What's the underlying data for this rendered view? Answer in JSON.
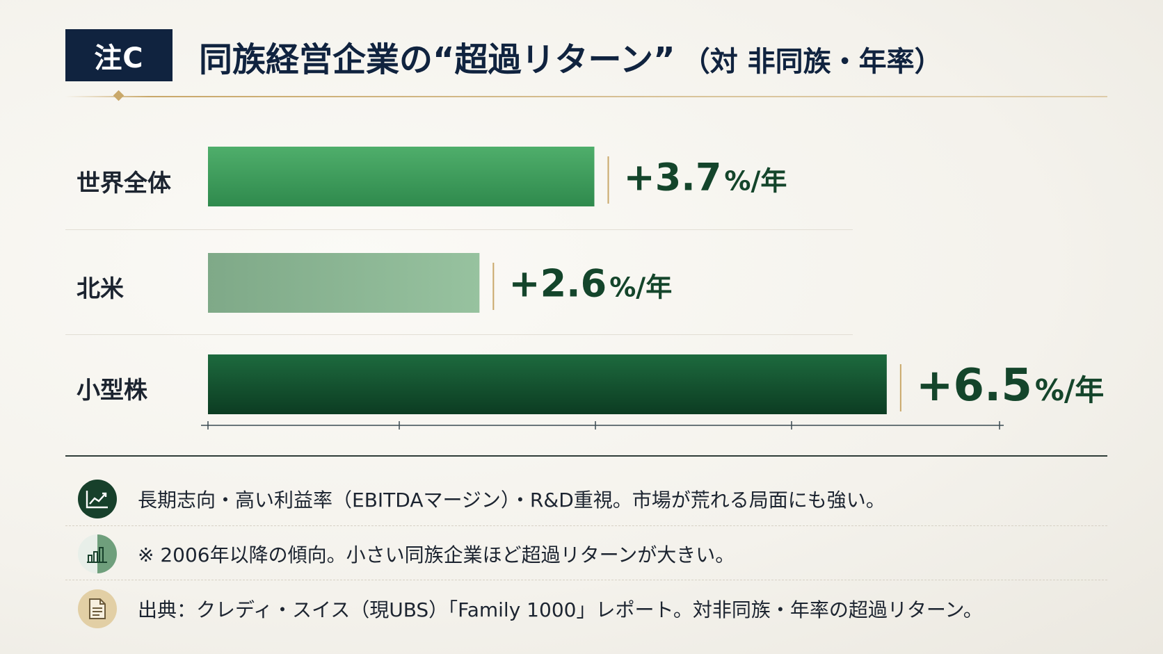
{
  "header": {
    "badge": "注C",
    "title": "同族経営企業の“超過リターン”",
    "subtitle": "（対 非同族・年率）"
  },
  "chart_data": {
    "type": "bar",
    "orientation": "horizontal",
    "categories": [
      "世界全体",
      "北米",
      "小型株"
    ],
    "values": [
      3.7,
      2.6,
      6.5
    ],
    "value_labels": [
      "+3.7",
      "+2.6",
      "+6.5"
    ],
    "unit_label": "%/年",
    "xlim": [
      0,
      7.6
    ],
    "grid": false,
    "colors": [
      "#3f9a5c",
      "#8fba96",
      "#155a34"
    ]
  },
  "notes": [
    {
      "icon": "trend-chart-icon",
      "text": "長期志向・高い利益率（EBITDAマージン）・R&D重視。市場が荒れる局面にも強い。"
    },
    {
      "icon": "bar-chart-icon",
      "text": "※ 2006年以降の傾向。小さい同族企業ほど超過リターンが大きい。"
    },
    {
      "icon": "document-icon",
      "text": "出典：クレディ・スイス（現UBS）「Family 1000」レポート。対非同族・年率の超過リターン。"
    }
  ],
  "colors": {
    "navy": "#10233f",
    "gold": "#c9a86a",
    "green_dark": "#14452b"
  }
}
